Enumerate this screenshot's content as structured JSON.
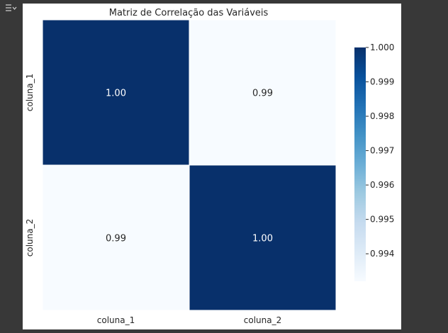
{
  "toolbar": {
    "output_toggle_icon": "collapse-output-icon"
  },
  "chart_data": {
    "type": "heatmap",
    "title": "Matriz de Correlação das Variáveis",
    "x_labels": [
      "coluna_1",
      "coluna_2"
    ],
    "y_labels": [
      "coluna_1",
      "coluna_2"
    ],
    "values": [
      [
        1.0,
        0.99
      ],
      [
        0.99,
        1.0
      ]
    ],
    "annotations": [
      [
        "1.00",
        "0.99"
      ],
      [
        "0.99",
        "1.00"
      ]
    ],
    "colormap": "Blues",
    "colors": {
      "high": "#08306b",
      "low": "#f7fbff",
      "cell_border": "#ffffff"
    },
    "colorbar": {
      "range": [
        0.9932,
        1.0
      ],
      "ticks": [
        1.0,
        0.999,
        0.998,
        0.997,
        0.996,
        0.995,
        0.994
      ],
      "tick_labels": [
        "1.000",
        "0.999",
        "0.998",
        "0.997",
        "0.996",
        "0.995",
        "0.994"
      ]
    }
  }
}
